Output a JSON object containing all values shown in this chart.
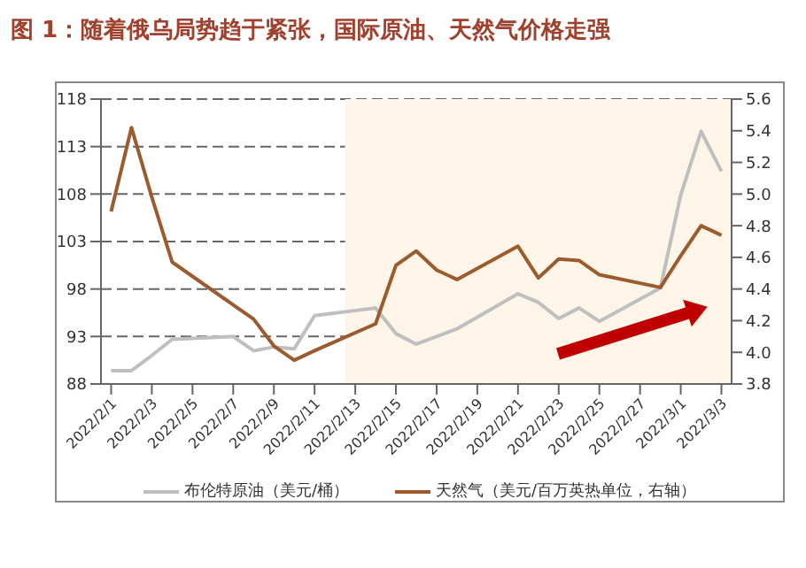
{
  "chart_data": {
    "type": "line",
    "title": "图 1：随着俄乌局势趋于紧张，国际原油、天然气价格走强",
    "x": [
      "2022-02-01",
      "2022-02-02",
      "2022-02-03",
      "2022-02-04",
      "2022-02-07",
      "2022-02-08",
      "2022-02-09",
      "2022-02-10",
      "2022-02-11",
      "2022-02-14",
      "2022-02-15",
      "2022-02-16",
      "2022-02-17",
      "2022-02-18",
      "2022-02-21",
      "2022-02-22",
      "2022-02-23",
      "2022-02-24",
      "2022-02-25",
      "2022-02-28",
      "2022-03-01",
      "2022-03-02",
      "2022-03-03"
    ],
    "series": [
      {
        "name": "布伦特原油（美元/桶）",
        "color": "#bfbfbf",
        "values": [
          89.4,
          89.4,
          91.0,
          92.7,
          93.0,
          91.5,
          91.9,
          91.7,
          95.2,
          96.0,
          93.3,
          92.2,
          93.0,
          93.8,
          97.5,
          96.6,
          94.9,
          96.0,
          94.6,
          98.1,
          107.9,
          114.6,
          110.4
        ]
      },
      {
        "name": "天然气（美元/百万英热单位，右轴）",
        "color": "#9c5b2e",
        "axis": "y2",
        "values": [
          4.89,
          5.42,
          4.98,
          4.57,
          4.3,
          4.21,
          4.04,
          3.95,
          4.01,
          4.18,
          4.55,
          4.64,
          4.52,
          4.46,
          4.67,
          4.47,
          4.59,
          4.58,
          4.49,
          4.41,
          4.61,
          4.8,
          4.74
        ]
      }
    ],
    "xlim": [
      "2022-01-31T12:00",
      "2022-03-03T12:00"
    ],
    "xticks": [
      {
        "value": "2022-02-01",
        "label": "2022/2/1"
      },
      {
        "value": "2022-02-03",
        "label": "2022/2/3"
      },
      {
        "value": "2022-02-05",
        "label": "2022/2/5"
      },
      {
        "value": "2022-02-07",
        "label": "2022/2/7"
      },
      {
        "value": "2022-02-09",
        "label": "2022/2/9"
      },
      {
        "value": "2022-02-11",
        "label": "2022/2/11"
      },
      {
        "value": "2022-02-13",
        "label": "2022/2/13"
      },
      {
        "value": "2022-02-15",
        "label": "2022/2/15"
      },
      {
        "value": "2022-02-17",
        "label": "2022/2/17"
      },
      {
        "value": "2022-02-19",
        "label": "2022/2/19"
      },
      {
        "value": "2022-02-21",
        "label": "2022/2/21"
      },
      {
        "value": "2022-02-23",
        "label": "2022/2/23"
      },
      {
        "value": "2022-02-25",
        "label": "2022/2/25"
      },
      {
        "value": "2022-02-27",
        "label": "2022/2/27"
      },
      {
        "value": "2022-03-01",
        "label": "2022/3/1"
      },
      {
        "value": "2022-03-03",
        "label": "2022/3/3"
      }
    ],
    "ylim": [
      88,
      118
    ],
    "yticks": [
      88,
      93,
      98,
      103,
      108,
      113,
      118
    ],
    "y2lim": [
      3.8,
      5.6
    ],
    "y2ticks": [
      3.8,
      {
        "value": 4,
        "label": "4.0"
      },
      4.2,
      4.4,
      4.6,
      4.8,
      {
        "value": 5,
        "label": "5.0"
      },
      5.2,
      5.4,
      5.6
    ],
    "bands": [
      {
        "axis": "x",
        "from": "2022-02-12T12:00",
        "to": "2022-03-03T12:00",
        "color": "#fdf6e8"
      }
    ],
    "grid": "y",
    "legend": "bottom",
    "marker": "none",
    "line_style": "solid"
  }
}
